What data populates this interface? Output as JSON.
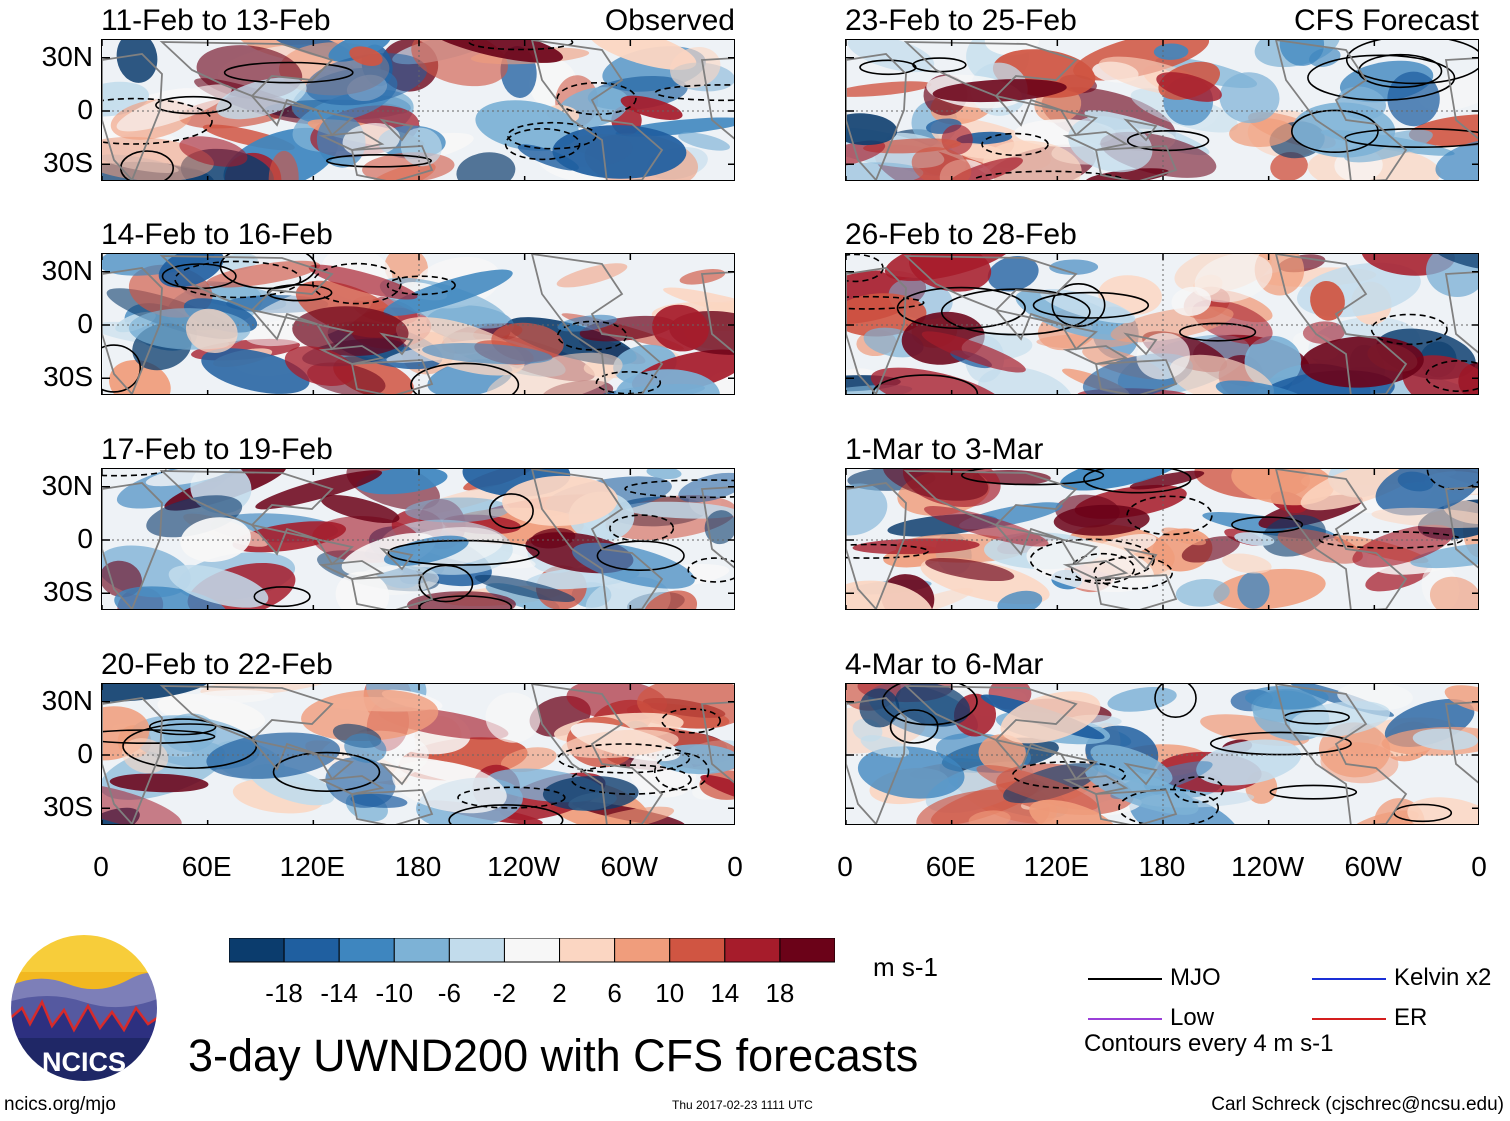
{
  "figure": {
    "title": "3-day UWND200 with CFS forecasts",
    "footer_left": "ncics.org/mjo",
    "footer_center": "Thu 2017-02-23 1111 UTC",
    "footer_right": "Carl Schreck (cjschrec@ncsu.edu)",
    "logo_text": "NCICS",
    "colors": {
      "dark_blue": "#0b3c6d",
      "mid_blue": "#2a6fb0",
      "light_blue": "#9cc7e2",
      "white": "#f7f7f7",
      "light_red": "#f6c2a8",
      "mid_red": "#d05542",
      "dark_red": "#7a0a1c",
      "continent": "#808080"
    }
  },
  "chart_data": {
    "type": "heatmap",
    "variable": "UWND200",
    "units": "m s-1",
    "columns": [
      {
        "tag": "Observed",
        "panels": [
          "11-Feb to 13-Feb",
          "14-Feb to 16-Feb",
          "17-Feb to 19-Feb",
          "20-Feb to 22-Feb"
        ]
      },
      {
        "tag": "CFS Forecast",
        "panels": [
          "23-Feb to 25-Feb",
          "26-Feb to 28-Feb",
          "1-Mar to 3-Mar",
          "4-Mar to 6-Mar"
        ]
      }
    ],
    "lat_ticks": [
      "30N",
      "0",
      "30S"
    ],
    "lon_ticks": [
      "0",
      "60E",
      "120E",
      "180",
      "120W",
      "60W",
      "0"
    ],
    "colorbar": {
      "ticks": [
        "-18",
        "-14",
        "-10",
        "-6",
        "-2",
        "2",
        "6",
        "10",
        "14",
        "18"
      ],
      "colors": [
        "#0b3c6d",
        "#1f5fa0",
        "#3e86bf",
        "#7db2d6",
        "#c2dcec",
        "#f7f7f7",
        "#fbd6c2",
        "#f09d7c",
        "#d05542",
        "#a61c2b",
        "#6b0218"
      ]
    },
    "legend": {
      "items": [
        {
          "label": "MJO",
          "color": "#000000"
        },
        {
          "label": "Kelvin x2",
          "color": "#1a2fd6"
        },
        {
          "label": "Low",
          "color": "#9a3fd8"
        },
        {
          "label": "ER",
          "color": "#d41e1e"
        }
      ],
      "note": "Contours every 4 m s-1"
    }
  }
}
